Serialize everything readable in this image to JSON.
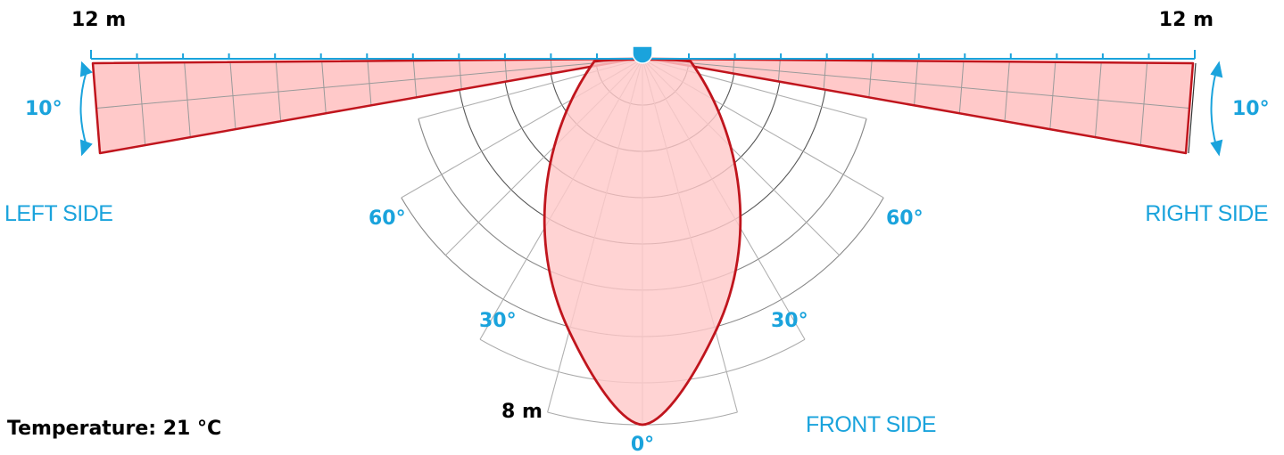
{
  "labels": {
    "left_range": "12 m",
    "right_range": "12 m",
    "left_tilt": "10°",
    "right_tilt": "10°",
    "left_side": "LEFT SIDE",
    "right_side": "RIGHT SIDE",
    "front_side": "FRONT SIDE",
    "front_range": "8 m",
    "angle_60_left": "60°",
    "angle_60_right": "60°",
    "angle_30_left": "30°",
    "angle_30_right": "30°",
    "angle_0": "0°",
    "temperature": "Temperature: 21 °C"
  },
  "detection": {
    "side_range_m": 12,
    "front_range_m": 8,
    "side_tilt_deg": 10,
    "temperature_c": 21
  },
  "colors": {
    "accent": "#1aa3dc",
    "zone_fill": "#ffc9c9",
    "zone_stroke": "#c0151d",
    "grid": "#9a9a9a"
  }
}
